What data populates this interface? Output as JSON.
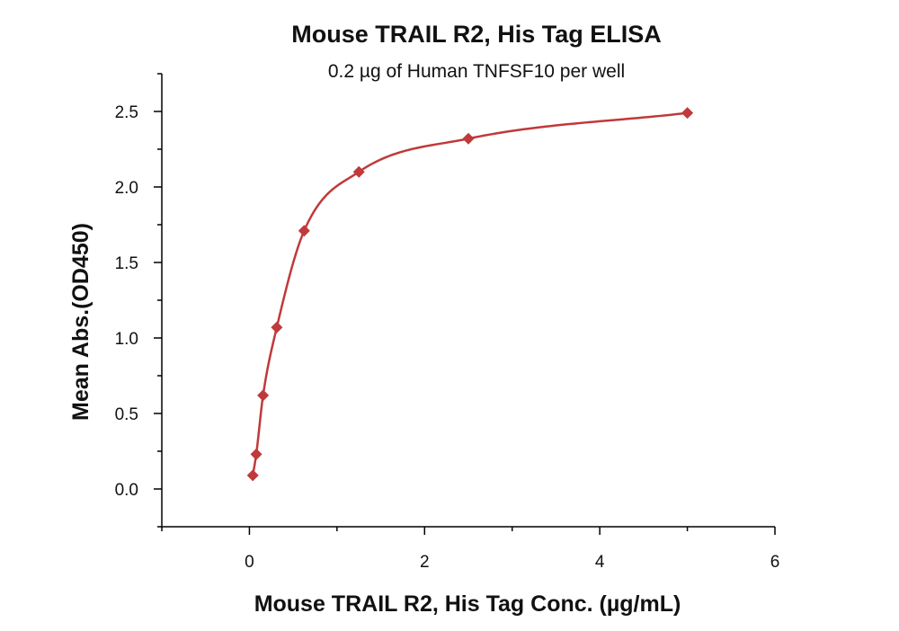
{
  "chart_data": {
    "type": "scatter",
    "title": "Mouse TRAIL R2, His Tag ELISA",
    "subtitle": "0.2 µg of Human TNFSF10 per well",
    "xlabel": "Mouse TRAIL R2, His Tag Conc. (µg/mL)",
    "ylabel": "Mean Abs.(OD450)",
    "xlim": [
      -1,
      6
    ],
    "ylim": [
      -0.25,
      2.75
    ],
    "x_ticks": [
      0,
      2,
      4,
      6
    ],
    "x_tick_labels": [
      "0",
      "2",
      "4",
      "6"
    ],
    "y_ticks": [
      0.0,
      0.5,
      1.0,
      1.5,
      2.0,
      2.5
    ],
    "y_tick_labels": [
      "0.0",
      "0.5",
      "1.0",
      "1.5",
      "2.0",
      "2.5"
    ],
    "grid": false,
    "series": [
      {
        "marker": "diamond",
        "color": "#c0393b",
        "x": [
          0.039,
          0.078,
          0.156,
          0.3125,
          0.625,
          1.25,
          2.5,
          5.0
        ],
        "y": [
          0.09,
          0.23,
          0.62,
          1.07,
          1.71,
          2.1,
          2.32,
          2.49
        ],
        "fit_line": true
      }
    ]
  }
}
